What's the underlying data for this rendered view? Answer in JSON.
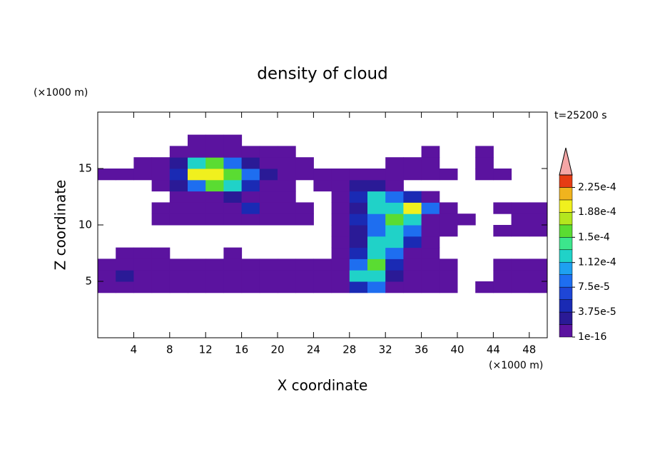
{
  "chart_data": {
    "type": "heatmap",
    "title": "density of cloud",
    "y_unit": "(×1000 m)",
    "x_unit": "(×1000 m)",
    "time_label": "t=25200 s",
    "xlabel": "X coordinate",
    "ylabel": "Z coordinate",
    "xlim": [
      0,
      50
    ],
    "ylim": [
      0,
      20
    ],
    "xticks": [
      4,
      8,
      12,
      16,
      20,
      24,
      28,
      32,
      36,
      40,
      44,
      48
    ],
    "yticks": [
      5,
      10,
      15
    ],
    "x": [
      1,
      3,
      5,
      7,
      9,
      11,
      13,
      15,
      17,
      19,
      21,
      23,
      25,
      27,
      29,
      31,
      33,
      35,
      37,
      39,
      41,
      43,
      45,
      47,
      49
    ],
    "y": [
      4.5,
      5.5,
      6.5,
      7.5,
      8.5,
      9.5,
      10.5,
      11.5,
      12.5,
      13.5,
      14.5,
      15.5,
      16.5,
      17.5
    ],
    "values": [
      [
        1e-05,
        1e-05,
        1e-05,
        1e-05,
        1e-05,
        1e-05,
        1e-05,
        1e-05,
        1e-05,
        1e-05,
        1e-05,
        1e-05,
        1e-05,
        1e-05,
        5e-05,
        8e-05,
        1e-05,
        1e-05,
        1e-05,
        1e-05,
        null,
        1e-05,
        1e-05,
        1e-05,
        1e-05
      ],
      [
        1e-05,
        3e-05,
        1e-05,
        1e-05,
        1e-05,
        1e-05,
        1e-05,
        1e-05,
        1e-05,
        1e-05,
        1e-05,
        1e-05,
        1e-05,
        1e-05,
        0.00012,
        0.00012,
        3e-05,
        1e-05,
        1e-05,
        1e-05,
        null,
        null,
        1e-05,
        1e-05,
        1e-05
      ],
      [
        1e-05,
        1e-05,
        1e-05,
        1e-05,
        1e-05,
        1e-05,
        1e-05,
        1e-05,
        1e-05,
        1e-05,
        1e-05,
        1e-05,
        1e-05,
        1e-05,
        8e-05,
        0.00016,
        5e-05,
        1e-05,
        1e-05,
        1e-05,
        null,
        null,
        1e-05,
        1e-05,
        1e-05
      ],
      [
        null,
        1e-05,
        1e-05,
        1e-05,
        null,
        null,
        null,
        1e-05,
        null,
        null,
        null,
        null,
        null,
        1e-05,
        5e-05,
        0.00012,
        8e-05,
        1e-05,
        1e-05,
        null,
        null,
        null,
        null,
        null,
        null
      ],
      [
        null,
        null,
        null,
        null,
        null,
        null,
        null,
        null,
        null,
        null,
        null,
        null,
        null,
        1e-05,
        3e-05,
        0.00012,
        0.00012,
        5e-05,
        1e-05,
        null,
        null,
        null,
        null,
        null,
        null
      ],
      [
        null,
        null,
        null,
        null,
        null,
        null,
        null,
        null,
        null,
        null,
        null,
        null,
        null,
        1e-05,
        3e-05,
        8e-05,
        0.00012,
        8e-05,
        1e-05,
        1e-05,
        null,
        null,
        1e-05,
        1e-05,
        1e-05
      ],
      [
        null,
        null,
        null,
        1e-05,
        1e-05,
        1e-05,
        1e-05,
        1e-05,
        1e-05,
        1e-05,
        1e-05,
        1e-05,
        null,
        1e-05,
        5e-05,
        8e-05,
        0.00016,
        0.00012,
        1e-05,
        1e-05,
        1e-05,
        null,
        null,
        1e-05,
        1e-05
      ],
      [
        null,
        null,
        null,
        1e-05,
        1e-05,
        1e-05,
        1e-05,
        1e-05,
        5e-05,
        1e-05,
        1e-05,
        1e-05,
        null,
        1e-05,
        3e-05,
        0.00012,
        0.00012,
        0.0002,
        8e-05,
        1e-05,
        null,
        null,
        1e-05,
        1e-05,
        1e-05
      ],
      [
        null,
        null,
        null,
        null,
        1e-05,
        1e-05,
        1e-05,
        3e-05,
        1e-05,
        1e-05,
        1e-05,
        null,
        null,
        1e-05,
        5e-05,
        0.00012,
        8e-05,
        5e-05,
        1e-05,
        null,
        null,
        null,
        null,
        null,
        null
      ],
      [
        null,
        null,
        null,
        1e-05,
        3e-05,
        8e-05,
        0.00016,
        0.00012,
        5e-05,
        1e-05,
        1e-05,
        null,
        1e-05,
        1e-05,
        3e-05,
        3e-05,
        1e-05,
        null,
        null,
        null,
        null,
        null,
        null,
        null,
        null
      ],
      [
        1e-05,
        1e-05,
        1e-05,
        1e-05,
        5e-05,
        0.0002,
        0.0002,
        0.00016,
        8e-05,
        3e-05,
        1e-05,
        1e-05,
        1e-05,
        1e-05,
        1e-05,
        1e-05,
        1e-05,
        1e-05,
        1e-05,
        1e-05,
        null,
        1e-05,
        1e-05,
        null,
        null
      ],
      [
        null,
        null,
        1e-05,
        1e-05,
        3e-05,
        0.00012,
        0.00016,
        8e-05,
        3e-05,
        1e-05,
        1e-05,
        1e-05,
        null,
        null,
        null,
        null,
        1e-05,
        1e-05,
        1e-05,
        null,
        null,
        1e-05,
        null,
        null,
        null
      ],
      [
        null,
        null,
        null,
        null,
        1e-05,
        1e-05,
        1e-05,
        1e-05,
        1e-05,
        1e-05,
        1e-05,
        null,
        null,
        null,
        null,
        null,
        null,
        null,
        1e-05,
        null,
        null,
        1e-05,
        null,
        null,
        null
      ],
      [
        null,
        null,
        null,
        null,
        null,
        1e-05,
        1e-05,
        1e-05,
        null,
        null,
        null,
        null,
        null,
        null,
        null,
        null,
        null,
        null,
        null,
        null,
        null,
        null,
        null,
        null,
        null
      ]
    ],
    "colorbar": {
      "levels": [
        1e-16,
        1.875e-05,
        3.75e-05,
        5.625e-05,
        7.5e-05,
        9.375e-05,
        0.0001125,
        0.00013125,
        0.00015,
        0.00016875,
        0.0001875,
        0.00020625,
        0.000225,
        0.00024375
      ],
      "colors": [
        "#5b139f",
        "#2a1a96",
        "#1a2ab4",
        "#1e46d6",
        "#1e6ef0",
        "#1ea0f0",
        "#20d2c8",
        "#3ce68c",
        "#5adc32",
        "#b4e61e",
        "#f0f01e",
        "#f0b41e",
        "#e63c14"
      ],
      "extend_color": "#f4a6a6",
      "ticks": [
        {
          "value": 1e-16,
          "label": "1e-16"
        },
        {
          "value": 3.75e-05,
          "label": "3.75e-5"
        },
        {
          "value": 7.5e-05,
          "label": "7.5e-5"
        },
        {
          "value": 0.000112,
          "label": "1.12e-4"
        },
        {
          "value": 0.00015,
          "label": "1.5e-4"
        },
        {
          "value": 0.000188,
          "label": "1.88e-4"
        },
        {
          "value": 0.000225,
          "label": "2.25e-4"
        }
      ]
    }
  }
}
